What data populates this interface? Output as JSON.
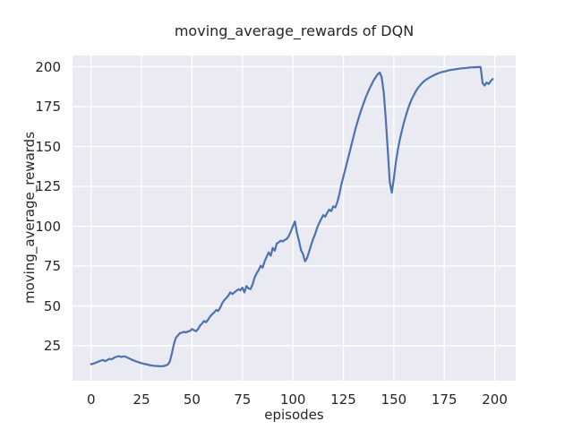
{
  "chart_data": {
    "type": "line",
    "title": "moving_average_rewards of DQN",
    "xlabel": "episodes",
    "ylabel": "moving_average_rewards",
    "xticks": [
      0,
      25,
      50,
      75,
      100,
      125,
      150,
      175,
      200
    ],
    "yticks": [
      25,
      50,
      75,
      100,
      125,
      150,
      175,
      200
    ],
    "xlim": [
      -9.2,
      210.4
    ],
    "ylim": [
      3.1,
      207.1
    ],
    "grid": true,
    "legend": false,
    "style": {
      "plot_bg": "#eaeaf2",
      "figure_bg": "#ffffff",
      "grid_color": "#ffffff",
      "line_color": "#4c72b0",
      "text_color": "#262626"
    },
    "series": [
      {
        "name": "moving_average_rewards",
        "x_start": 0,
        "x_step": 1,
        "y": [
          13.5,
          13.8,
          14.2,
          14.8,
          15.3,
          15.8,
          16.1,
          15.4,
          16.0,
          16.8,
          16.5,
          17.2,
          17.9,
          18.3,
          18.5,
          18.0,
          18.4,
          18.2,
          17.6,
          17.0,
          16.4,
          15.9,
          15.4,
          14.9,
          14.5,
          14.1,
          13.8,
          13.5,
          13.2,
          12.9,
          12.7,
          12.5,
          12.4,
          12.3,
          12.2,
          12.2,
          12.3,
          12.7,
          13.2,
          15.0,
          20.0,
          26.0,
          30.0,
          31.5,
          33.0,
          33.2,
          33.8,
          33.4,
          34.0,
          34.3,
          35.5,
          34.8,
          34.2,
          35.5,
          37.8,
          39.0,
          40.6,
          39.8,
          41.5,
          43.4,
          44.8,
          46.0,
          47.5,
          46.8,
          49.0,
          51.8,
          53.7,
          55.0,
          56.5,
          58.5,
          57.5,
          58.5,
          59.5,
          60.5,
          59.8,
          61.5,
          58.5,
          62.5,
          61.0,
          60.6,
          63.5,
          67.7,
          70.5,
          72.4,
          75.2,
          74.0,
          78.0,
          80.8,
          83.6,
          81.5,
          86.4,
          84.7,
          89.2,
          90.0,
          91.0,
          90.5,
          91.5,
          92.1,
          94.0,
          96.8,
          100.0,
          103.0,
          95.8,
          91.0,
          85.0,
          82.7,
          78.0,
          80.0,
          84.0,
          88.0,
          92.0,
          95.0,
          99.0,
          102.0,
          104.5,
          107.0,
          106.0,
          108.5,
          110.5,
          109.5,
          112.5,
          111.8,
          115.0,
          120.0,
          126.0,
          131.0,
          136.0,
          141.0,
          146.0,
          151.0,
          156.0,
          161.0,
          165.5,
          169.5,
          173.5,
          177.0,
          180.5,
          183.5,
          186.5,
          189.0,
          191.5,
          193.5,
          195.3,
          196.5,
          193.5,
          184.0,
          168.0,
          148.0,
          128.0,
          121.0,
          130.0,
          140.0,
          148.0,
          154.5,
          160.0,
          165.0,
          169.5,
          173.5,
          177.0,
          180.0,
          182.5,
          184.8,
          186.8,
          188.4,
          189.8,
          191.0,
          192.0,
          192.8,
          193.5,
          194.2,
          194.8,
          195.4,
          195.9,
          196.4,
          196.8,
          197.1,
          197.4,
          197.7,
          198.0,
          198.2,
          198.4,
          198.6,
          198.8,
          199.0,
          199.1,
          199.2,
          199.35,
          199.5,
          199.6,
          199.7,
          199.75,
          199.8,
          199.85,
          199.9,
          189.8,
          188.3,
          190.2,
          189.3,
          191.0,
          192.4
        ]
      }
    ]
  }
}
